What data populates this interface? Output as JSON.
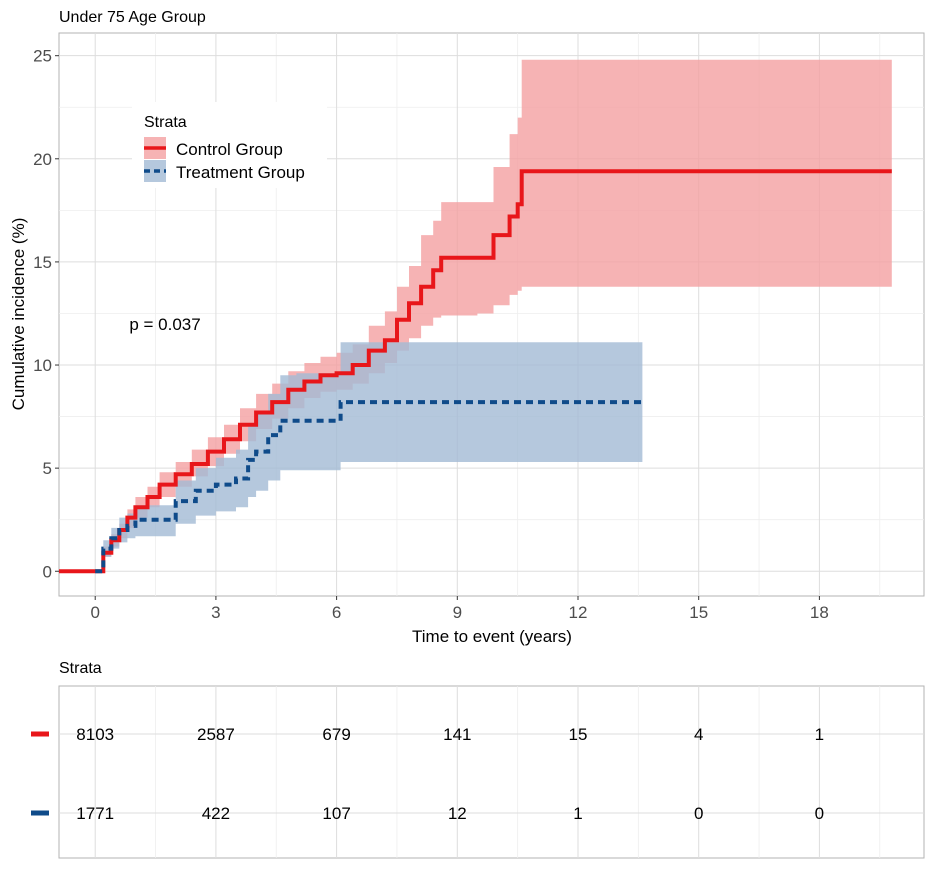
{
  "chart_data": {
    "type": "line",
    "title": "Under 75 Age Group",
    "xlabel": "Time to event (years)",
    "ylabel": "Cumulative incidence (%)",
    "xlim": [
      -0.9,
      20.6
    ],
    "ylim": [
      -1.2,
      26.1
    ],
    "xticks": [
      0,
      3,
      6,
      9,
      12,
      15,
      18
    ],
    "yticks": [
      0,
      5,
      10,
      15,
      20,
      25
    ],
    "grid": true,
    "legend": {
      "title": "Strata",
      "position": "top-left",
      "entries": [
        "Control Group",
        "Treatment Group"
      ]
    },
    "annotation": "p = 0.037",
    "colors": {
      "control": "#E8161A",
      "control_band": "#F4A0A1",
      "treatment": "#0F4B8A",
      "treatment_band": "#A2BAD5"
    },
    "series": [
      {
        "name": "Control Group",
        "line": "solid",
        "x": [
          -0.9,
          0,
          0.2,
          0.4,
          0.6,
          0.8,
          1.0,
          1.3,
          1.6,
          2.0,
          2.4,
          2.8,
          3.2,
          3.6,
          4.0,
          4.4,
          4.8,
          5.2,
          5.6,
          6.0,
          6.4,
          6.8,
          7.2,
          7.5,
          7.8,
          8.1,
          8.4,
          8.6,
          9.5,
          9.9,
          10.3,
          10.5,
          10.6,
          19.8
        ],
        "y": [
          0,
          0,
          0.9,
          1.5,
          2.0,
          2.6,
          3.1,
          3.6,
          4.2,
          4.7,
          5.2,
          5.8,
          6.4,
          7.1,
          7.7,
          8.2,
          8.8,
          9.2,
          9.5,
          9.6,
          10.0,
          10.7,
          11.2,
          12.2,
          13.0,
          13.8,
          14.6,
          15.2,
          15.2,
          16.3,
          17.2,
          17.8,
          19.4,
          19.4
        ],
        "lower": [
          0,
          0,
          0.7,
          1.2,
          1.6,
          2.1,
          2.6,
          3.1,
          3.6,
          4.1,
          4.6,
          5.1,
          5.7,
          6.3,
          6.9,
          7.4,
          7.9,
          8.4,
          8.7,
          8.8,
          9.1,
          9.6,
          10.1,
          10.7,
          11.3,
          11.9,
          12.3,
          12.4,
          12.5,
          12.9,
          13.4,
          13.6,
          13.8,
          13.8
        ],
        "upper": [
          0,
          0,
          1.2,
          1.8,
          2.3,
          3.0,
          3.6,
          4.1,
          4.8,
          5.3,
          5.9,
          6.5,
          7.1,
          7.9,
          8.6,
          9.1,
          9.7,
          10.1,
          10.4,
          10.6,
          11.0,
          11.9,
          12.6,
          13.8,
          14.8,
          16.3,
          17.0,
          17.9,
          17.9,
          19.6,
          21.2,
          22.0,
          24.8,
          24.8
        ]
      },
      {
        "name": "Treatment Group",
        "line": "dashed",
        "x": [
          0,
          0.2,
          0.4,
          0.6,
          0.8,
          1.0,
          1.5,
          2.0,
          2.5,
          3.0,
          3.5,
          3.8,
          4.0,
          4.3,
          4.6,
          5.0,
          5.5,
          6.0,
          6.1,
          13.6
        ],
        "y": [
          0,
          1.1,
          1.6,
          2.0,
          2.2,
          2.5,
          2.5,
          3.4,
          3.9,
          4.2,
          4.5,
          5.4,
          5.8,
          6.6,
          7.3,
          7.3,
          7.3,
          7.3,
          8.2,
          8.2
        ],
        "lower": [
          0,
          0.7,
          1.1,
          1.4,
          1.6,
          1.7,
          1.7,
          2.3,
          2.7,
          2.9,
          3.1,
          3.6,
          3.9,
          4.4,
          4.9,
          4.9,
          4.9,
          4.9,
          5.3,
          5.3
        ],
        "upper": [
          0,
          1.5,
          2.1,
          2.6,
          2.8,
          3.2,
          3.2,
          4.4,
          5.0,
          5.5,
          5.9,
          7.1,
          7.6,
          8.6,
          9.5,
          9.6,
          9.6,
          9.6,
          11.1,
          11.1
        ]
      }
    ]
  },
  "risk_table": {
    "title": "Strata",
    "times": [
      0,
      3,
      6,
      9,
      12,
      15,
      18
    ],
    "rows": [
      {
        "group": "Control Group",
        "color": "#E8161A",
        "counts": [
          "8103",
          "2587",
          "679",
          "141",
          "15",
          "4",
          "1"
        ]
      },
      {
        "group": "Treatment Group",
        "color": "#0F4B8A",
        "counts": [
          "1771",
          "422",
          "107",
          "12",
          "1",
          "0",
          "0"
        ]
      }
    ]
  }
}
